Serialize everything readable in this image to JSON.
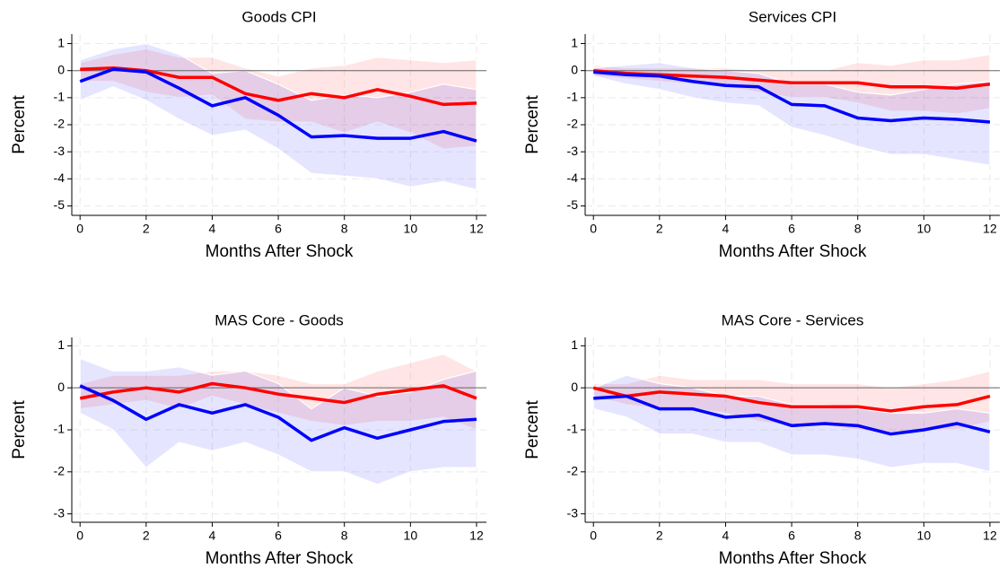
{
  "chart_data": [
    {
      "type": "line",
      "title": "Goods CPI",
      "xlabel": "Months After Shock",
      "ylabel": "Percent",
      "x": [
        0,
        1,
        2,
        3,
        4,
        5,
        6,
        7,
        8,
        9,
        10,
        11,
        12
      ],
      "xlim": [
        -0.25,
        12.3
      ],
      "xticks": [
        0,
        2,
        4,
        6,
        8,
        10,
        12
      ],
      "ylim": [
        -5.35,
        1.35
      ],
      "yticks": [
        -5,
        -4,
        -3,
        -2,
        -1,
        0,
        1
      ],
      "grid": true,
      "hline": 0,
      "series": [
        {
          "color": "#ff0000",
          "values": [
            0.05,
            0.1,
            0,
            -0.25,
            -0.25,
            -0.85,
            -1.1,
            -0.85,
            -1.0,
            -0.7,
            -0.95,
            -1.25,
            -1.2
          ],
          "upper": [
            0.3,
            0.6,
            0.8,
            0.5,
            0.5,
            0.1,
            -0.2,
            0.1,
            0.2,
            0.5,
            0.4,
            0.3,
            0.4
          ],
          "lower": [
            -0.4,
            -0.4,
            -0.8,
            -1.0,
            -0.9,
            -1.8,
            -1.9,
            -1.9,
            -2.3,
            -1.9,
            -2.3,
            -2.9,
            -2.8
          ]
        },
        {
          "color": "#0000ff",
          "values": [
            -0.4,
            0.05,
            -0.05,
            -0.65,
            -1.3,
            -1.0,
            -1.65,
            -2.45,
            -2.4,
            -2.5,
            -2.5,
            -2.25,
            -2.6
          ],
          "upper": [
            0.4,
            0.8,
            1.0,
            0.6,
            -0.1,
            0.0,
            -0.5,
            -1.1,
            -0.9,
            -1.0,
            -0.8,
            -0.5,
            -0.7
          ],
          "lower": [
            -1.1,
            -0.6,
            -1.1,
            -1.8,
            -2.4,
            -2.2,
            -2.9,
            -3.8,
            -3.9,
            -4.0,
            -4.3,
            -4.1,
            -4.4
          ]
        }
      ]
    },
    {
      "type": "line",
      "title": "Services CPI",
      "xlabel": "Months After Shock",
      "ylabel": "Percent",
      "x": [
        0,
        1,
        2,
        3,
        4,
        5,
        6,
        7,
        8,
        9,
        10,
        11,
        12
      ],
      "xlim": [
        -0.25,
        12.3
      ],
      "xticks": [
        0,
        2,
        4,
        6,
        8,
        10,
        12
      ],
      "ylim": [
        -5.35,
        1.35
      ],
      "yticks": [
        -5,
        -4,
        -3,
        -2,
        -1,
        0,
        1
      ],
      "grid": true,
      "hline": 0,
      "series": [
        {
          "color": "#ff0000",
          "values": [
            0,
            -0.1,
            -0.15,
            -0.2,
            -0.25,
            -0.35,
            -0.45,
            -0.45,
            -0.45,
            -0.6,
            -0.6,
            -0.65,
            -0.5
          ],
          "upper": [
            0.2,
            0.1,
            0.1,
            0.1,
            0.1,
            0.0,
            0.0,
            0.0,
            0.3,
            0.2,
            0.4,
            0.4,
            0.6
          ],
          "lower": [
            -0.2,
            -0.3,
            -0.4,
            -0.5,
            -0.6,
            -0.8,
            -1.0,
            -1.0,
            -1.2,
            -1.5,
            -1.5,
            -1.6,
            -1.4
          ]
        },
        {
          "color": "#0000ff",
          "values": [
            -0.05,
            -0.15,
            -0.2,
            -0.4,
            -0.55,
            -0.6,
            -1.25,
            -1.3,
            -1.75,
            -1.85,
            -1.75,
            -1.8,
            -1.9
          ],
          "upper": [
            0.1,
            0.2,
            0.3,
            0.1,
            0.0,
            -0.1,
            -0.5,
            -0.5,
            -0.8,
            -0.9,
            -0.7,
            -0.5,
            -0.4
          ],
          "lower": [
            -0.2,
            -0.5,
            -0.7,
            -1.0,
            -1.2,
            -1.3,
            -2.1,
            -2.4,
            -2.8,
            -3.1,
            -3.1,
            -3.3,
            -3.5
          ]
        }
      ]
    },
    {
      "type": "line",
      "title": "MAS Core - Goods",
      "xlabel": "Months After Shock",
      "ylabel": "Percent",
      "x": [
        0,
        1,
        2,
        3,
        4,
        5,
        6,
        7,
        8,
        9,
        10,
        11,
        12
      ],
      "xlim": [
        -0.25,
        12.3
      ],
      "xticks": [
        0,
        2,
        4,
        6,
        8,
        10,
        12
      ],
      "ylim": [
        -3.2,
        1.2
      ],
      "yticks": [
        -3,
        -2,
        -1,
        0,
        1
      ],
      "grid": true,
      "hline": 0,
      "series": [
        {
          "color": "#ff0000",
          "values": [
            -0.25,
            -0.1,
            0,
            -0.1,
            0.1,
            0.0,
            -0.15,
            -0.25,
            -0.35,
            -0.15,
            -0.05,
            0.05,
            -0.25
          ],
          "upper": [
            0.1,
            0.3,
            0.3,
            0.3,
            0.4,
            0.4,
            0.3,
            0.1,
            0.1,
            0.4,
            0.6,
            0.8,
            0.4
          ],
          "lower": [
            -0.5,
            -0.4,
            -0.3,
            -0.5,
            -0.2,
            -0.4,
            -0.6,
            -0.8,
            -0.9,
            -0.8,
            -0.8,
            -0.7,
            -1.0
          ]
        },
        {
          "color": "#0000ff",
          "values": [
            0.05,
            -0.3,
            -0.75,
            -0.4,
            -0.6,
            -0.4,
            -0.7,
            -1.25,
            -0.95,
            -1.2,
            -1.0,
            -0.8,
            -0.75
          ],
          "upper": [
            0.7,
            0.4,
            0.4,
            0.5,
            0.3,
            0.4,
            0.1,
            -0.5,
            0.0,
            -0.2,
            -0.1,
            0.2,
            0.4
          ],
          "lower": [
            -0.6,
            -1.0,
            -1.9,
            -1.3,
            -1.5,
            -1.3,
            -1.6,
            -2.0,
            -2.0,
            -2.3,
            -2.0,
            -1.9,
            -1.9
          ]
        }
      ]
    },
    {
      "type": "line",
      "title": "MAS Core - Services",
      "xlabel": "Months After Shock",
      "ylabel": "Percent",
      "x": [
        0,
        1,
        2,
        3,
        4,
        5,
        6,
        7,
        8,
        9,
        10,
        11,
        12
      ],
      "xlim": [
        -0.25,
        12.3
      ],
      "xticks": [
        0,
        2,
        4,
        6,
        8,
        10,
        12
      ],
      "ylim": [
        -3.2,
        1.2
      ],
      "yticks": [
        -3,
        -2,
        -1,
        0,
        1
      ],
      "grid": true,
      "hline": 0,
      "series": [
        {
          "color": "#ff0000",
          "values": [
            0,
            -0.2,
            -0.1,
            -0.15,
            -0.2,
            -0.35,
            -0.45,
            -0.45,
            -0.45,
            -0.55,
            -0.45,
            -0.4,
            -0.2
          ],
          "upper": [
            0.1,
            0.1,
            0.3,
            0.2,
            0.2,
            0.2,
            0.1,
            0.1,
            0.1,
            0.0,
            0.1,
            0.2,
            0.4
          ],
          "lower": [
            -0.2,
            -0.4,
            -0.5,
            -0.5,
            -0.6,
            -0.8,
            -0.9,
            -0.9,
            -1.0,
            -1.1,
            -1.0,
            -1.0,
            -0.8
          ]
        },
        {
          "color": "#0000ff",
          "values": [
            -0.25,
            -0.2,
            -0.5,
            -0.5,
            -0.7,
            -0.65,
            -0.9,
            -0.85,
            -0.9,
            -1.1,
            -1.0,
            -0.85,
            -1.05
          ],
          "upper": [
            0.0,
            0.3,
            0.1,
            0.0,
            -0.2,
            -0.2,
            -0.4,
            -0.4,
            -0.5,
            -0.6,
            -0.6,
            -0.5,
            -0.6
          ],
          "lower": [
            -0.5,
            -0.7,
            -1.1,
            -1.1,
            -1.3,
            -1.3,
            -1.6,
            -1.6,
            -1.7,
            -1.9,
            -1.8,
            -1.8,
            -2.0
          ]
        }
      ]
    }
  ]
}
